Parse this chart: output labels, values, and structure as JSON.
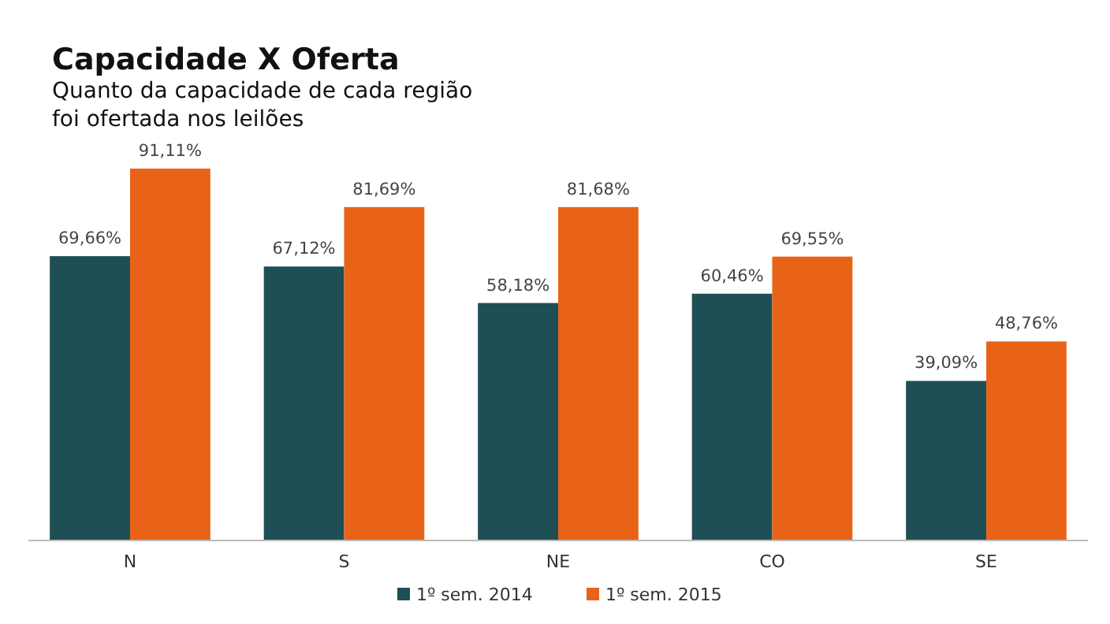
{
  "chart_data": {
    "type": "bar",
    "title": "Capacidade X Oferta",
    "subtitle": "Quanto da capacidade de cada região\nfoi ofertada nos leilões",
    "categories": [
      "N",
      "S",
      "NE",
      "CO",
      "SE"
    ],
    "legend": "bottom",
    "series": [
      {
        "name": "1º sem. 2014",
        "color": "#1e4f55",
        "values": [
          69.66,
          67.12,
          58.18,
          60.46,
          39.09
        ],
        "value_labels": [
          "69,66%",
          "67,12%",
          "58,18%",
          "60,46%",
          "39,09%"
        ]
      },
      {
        "name": "1º sem. 2015",
        "color": "#e86318",
        "values": [
          91.11,
          81.69,
          81.68,
          69.55,
          48.76
        ],
        "value_labels": [
          "91,11%",
          "81,69%",
          "81,68%",
          "69,55%",
          "48,76%"
        ]
      }
    ]
  }
}
